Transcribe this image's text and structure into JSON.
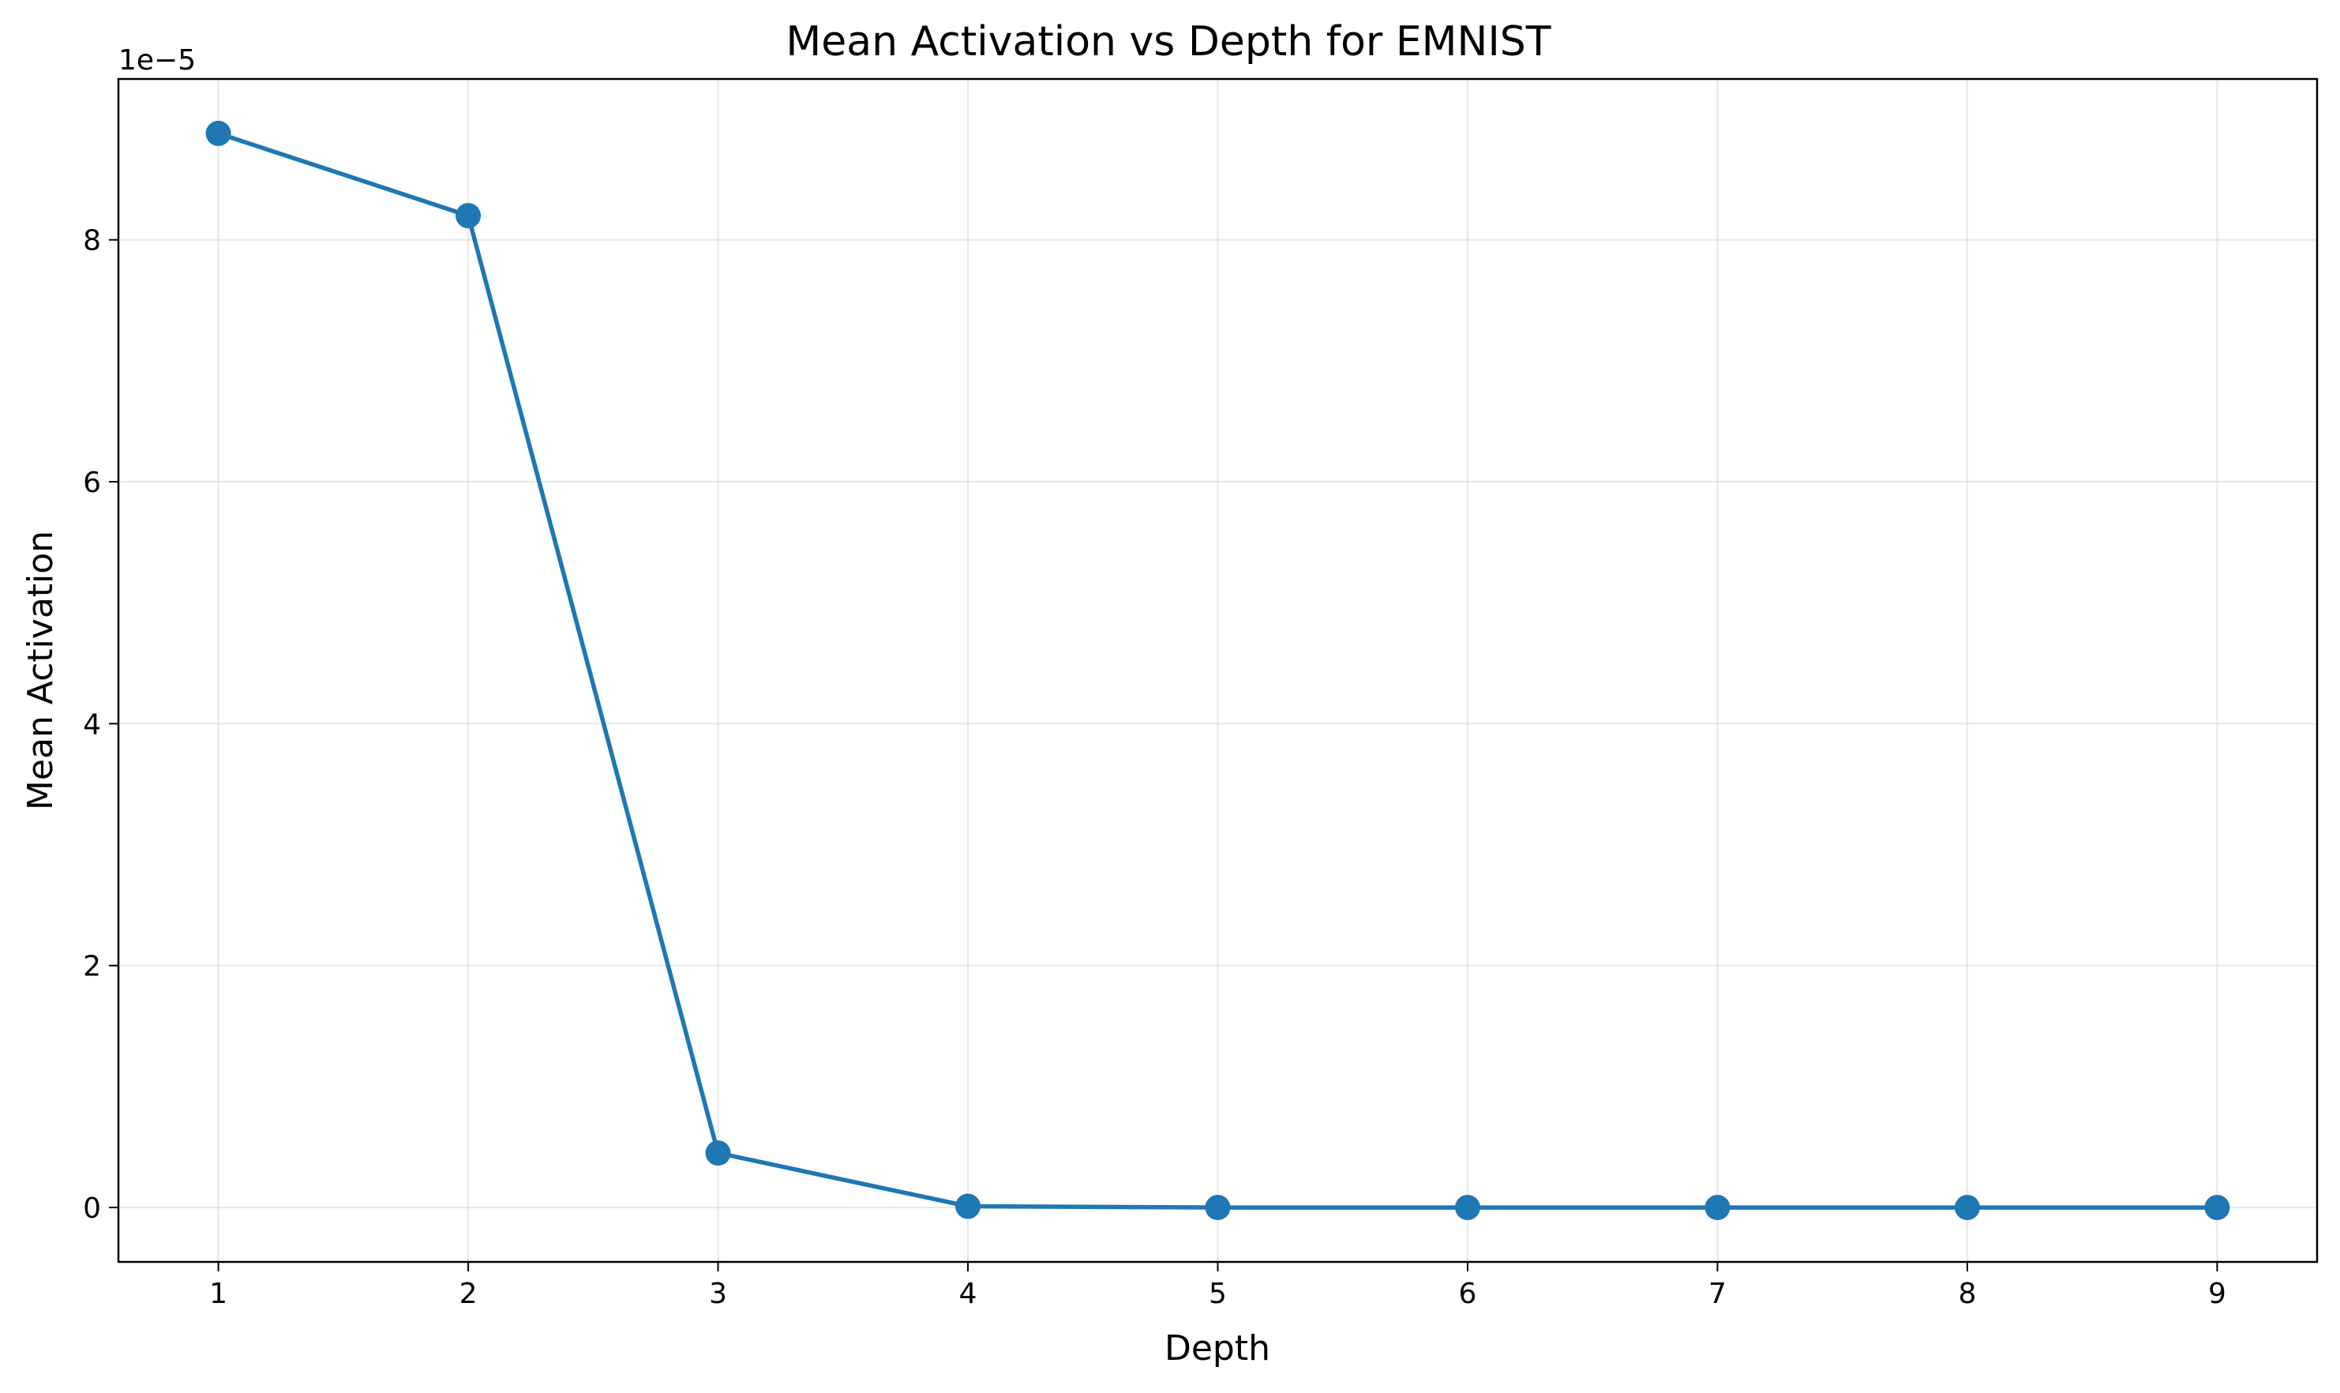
{
  "chart_data": {
    "type": "line",
    "title": "Mean Activation vs Depth for EMNIST",
    "xlabel": "Depth",
    "ylabel": "Mean Activation",
    "y_offset_label": "1e−5",
    "grid": true,
    "xlim": [
      0.6,
      9.4
    ],
    "ylim": [
      -0.45,
      9.33
    ],
    "x_ticks": [
      1,
      2,
      3,
      4,
      5,
      6,
      7,
      8,
      9
    ],
    "y_ticks": [
      0,
      2,
      4,
      6,
      8
    ],
    "x": [
      1,
      2,
      3,
      4,
      5,
      6,
      7,
      8,
      9
    ],
    "series": [
      {
        "color": "#1f77b4",
        "marker": "circle",
        "values": [
          8.88,
          8.2,
          0.45,
          0.01,
          0.0,
          0.0,
          0.0,
          0.0,
          0.0
        ]
      }
    ]
  }
}
